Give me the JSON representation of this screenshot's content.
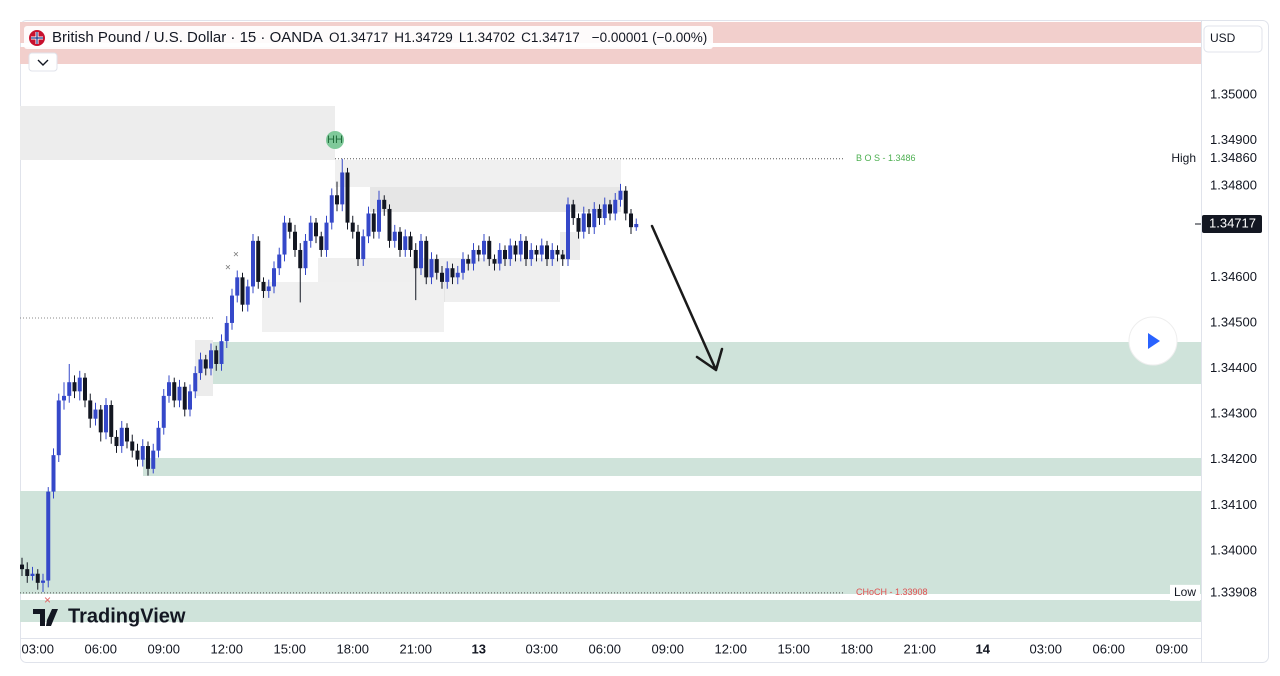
{
  "chart_data": {
    "type": "candlestick",
    "title": "British Pound / U.S. Dollar · 15 · OANDA",
    "stats": [
      {
        "label": "O",
        "value": 1.34717
      },
      {
        "label": "H",
        "value": 1.34729
      },
      {
        "label": "L",
        "value": 1.34702
      },
      {
        "label": "C",
        "value": 1.34717
      }
    ],
    "change": "−0.00001 (−0.00%)",
    "currency": "USD",
    "brand": "TradingView",
    "hh_label": "HH",
    "bos_label": "B O S - 1.3486",
    "choch_label": "CHoCH - 1.33908",
    "high_label": "High",
    "low_label": "Low",
    "last_price": 1.34717,
    "up_color": "#3548c9",
    "down_color": "#131722",
    "ylim": [
      1.33809,
      1.3516
    ],
    "yticks": [
      {
        "value": 1.35,
        "label": "1.35000"
      },
      {
        "value": 1.349,
        "label": "1.34900"
      },
      {
        "value": 1.3486,
        "label": "1.34860"
      },
      {
        "value": 1.348,
        "label": "1.34800"
      },
      {
        "value": 1.346,
        "label": "1.34600"
      },
      {
        "value": 1.345,
        "label": "1.34500"
      },
      {
        "value": 1.344,
        "label": "1.34400"
      },
      {
        "value": 1.343,
        "label": "1.34300"
      },
      {
        "value": 1.342,
        "label": "1.34200"
      },
      {
        "value": 1.341,
        "label": "1.34100"
      },
      {
        "value": 1.34,
        "label": "1.34000"
      },
      1.33908
    ],
    "grid": false,
    "x_labels": [
      "03:00",
      "06:00",
      "09:00",
      "12:00",
      "15:00",
      "18:00",
      "21:00",
      "13",
      "03:00",
      "06:00",
      "09:00",
      "12:00",
      "15:00",
      "18:00",
      "21:00",
      "14",
      "03:00",
      "06:00",
      "09:00"
    ],
    "candles": [
      [
        1.3397,
        1.33985,
        1.33945,
        1.3396
      ],
      [
        1.3396,
        1.33975,
        1.3393,
        1.33945
      ],
      [
        1.33945,
        1.33965,
        1.33935,
        1.3395
      ],
      [
        1.3395,
        1.3396,
        1.33915,
        1.3393
      ],
      [
        1.3393,
        1.3395,
        1.3391,
        1.33935
      ],
      [
        1.33935,
        1.3414,
        1.3392,
        1.3413
      ],
      [
        1.3413,
        1.34225,
        1.34115,
        1.3421
      ],
      [
        1.3421,
        1.34345,
        1.34195,
        1.3433
      ],
      [
        1.3433,
        1.3437,
        1.3431,
        1.3434
      ],
      [
        1.3434,
        1.3441,
        1.34325,
        1.3437
      ],
      [
        1.3437,
        1.34385,
        1.34335,
        1.3435
      ],
      [
        1.3435,
        1.34395,
        1.3433,
        1.3438
      ],
      [
        1.3438,
        1.3439,
        1.34315,
        1.3433
      ],
      [
        1.3433,
        1.34345,
        1.3427,
        1.3429
      ],
      [
        1.3429,
        1.34325,
        1.34275,
        1.3431
      ],
      [
        1.3431,
        1.3432,
        1.3424,
        1.3426
      ],
      [
        1.3426,
        1.34335,
        1.34245,
        1.3432
      ],
      [
        1.3432,
        1.3433,
        1.34235,
        1.3425
      ],
      [
        1.3425,
        1.34265,
        1.34215,
        1.3423
      ],
      [
        1.3423,
        1.34285,
        1.34215,
        1.3427
      ],
      [
        1.3427,
        1.3428,
        1.34225,
        1.3424
      ],
      [
        1.3424,
        1.34255,
        1.34205,
        1.3422
      ],
      [
        1.3422,
        1.34235,
        1.34185,
        1.342
      ],
      [
        1.342,
        1.34245,
        1.34185,
        1.3423
      ],
      [
        1.3423,
        1.3424,
        1.34165,
        1.3418
      ],
      [
        1.3418,
        1.34235,
        1.3417,
        1.3422
      ],
      [
        1.3422,
        1.34285,
        1.34205,
        1.3427
      ],
      [
        1.3427,
        1.34355,
        1.34255,
        1.3434
      ],
      [
        1.3434,
        1.34385,
        1.34325,
        1.3437
      ],
      [
        1.3437,
        1.3438,
        1.34315,
        1.3433
      ],
      [
        1.3433,
        1.34375,
        1.34315,
        1.3436
      ],
      [
        1.3436,
        1.3437,
        1.34295,
        1.3431
      ],
      [
        1.3431,
        1.34365,
        1.34295,
        1.3435
      ],
      [
        1.3435,
        1.34405,
        1.34335,
        1.3439
      ],
      [
        1.3439,
        1.34435,
        1.34375,
        1.3442
      ],
      [
        1.3442,
        1.3443,
        1.34385,
        1.344
      ],
      [
        1.344,
        1.34455,
        1.34385,
        1.3444
      ],
      [
        1.3444,
        1.3445,
        1.34395,
        1.3441
      ],
      [
        1.3441,
        1.34475,
        1.34395,
        1.3446
      ],
      [
        1.3446,
        1.34515,
        1.34445,
        1.345
      ],
      [
        1.345,
        1.34575,
        1.34485,
        1.3456
      ],
      [
        1.3456,
        1.34615,
        1.34545,
        1.346
      ],
      [
        1.346,
        1.3461,
        1.34525,
        1.3454
      ],
      [
        1.3454,
        1.34595,
        1.34525,
        1.3458
      ],
      [
        1.3458,
        1.34695,
        1.34565,
        1.3468
      ],
      [
        1.3468,
        1.3469,
        1.34575,
        1.3459
      ],
      [
        1.3459,
        1.346,
        1.34555,
        1.3457
      ],
      [
        1.3457,
        1.34595,
        1.34555,
        1.3458
      ],
      [
        1.3458,
        1.34635,
        1.34565,
        1.3462
      ],
      [
        1.3462,
        1.34665,
        1.34605,
        1.3465
      ],
      [
        1.3465,
        1.34735,
        1.34635,
        1.3472
      ],
      [
        1.3472,
        1.3473,
        1.34685,
        1.347
      ],
      [
        1.347,
        1.34715,
        1.34645,
        1.3466
      ],
      [
        1.3466,
        1.34675,
        1.34545,
        1.3462
      ],
      [
        1.3462,
        1.34695,
        1.34605,
        1.3468
      ],
      [
        1.3468,
        1.34735,
        1.34665,
        1.3472
      ],
      [
        1.3472,
        1.3473,
        1.34675,
        1.3469
      ],
      [
        1.3469,
        1.347,
        1.34645,
        1.3466
      ],
      [
        1.3466,
        1.34735,
        1.34645,
        1.3472
      ],
      [
        1.3472,
        1.34795,
        1.34705,
        1.3478
      ],
      [
        1.3478,
        1.3481,
        1.34745,
        1.3476
      ],
      [
        1.3476,
        1.3486,
        1.34745,
        1.3483
      ],
      [
        1.3483,
        1.3484,
        1.34705,
        1.3472
      ],
      [
        1.3472,
        1.34735,
        1.34685,
        1.347
      ],
      [
        1.347,
        1.34715,
        1.34625,
        1.3464
      ],
      [
        1.3464,
        1.34705,
        1.34625,
        1.3469
      ],
      [
        1.3469,
        1.34755,
        1.34675,
        1.3474
      ],
      [
        1.3474,
        1.3475,
        1.34685,
        1.347
      ],
      [
        1.347,
        1.3479,
        1.34685,
        1.3477
      ],
      [
        1.3477,
        1.3478,
        1.34735,
        1.3475
      ],
      [
        1.3475,
        1.3476,
        1.34665,
        1.3468
      ],
      [
        1.3468,
        1.34715,
        1.34665,
        1.347
      ],
      [
        1.347,
        1.3471,
        1.34645,
        1.3466
      ],
      [
        1.3466,
        1.34705,
        1.34645,
        1.3469
      ],
      [
        1.3469,
        1.347,
        1.34645,
        1.3466
      ],
      [
        1.3466,
        1.34675,
        1.3455,
        1.3462
      ],
      [
        1.3462,
        1.34695,
        1.34605,
        1.3468
      ],
      [
        1.3468,
        1.3469,
        1.34585,
        1.346
      ],
      [
        1.346,
        1.34655,
        1.34585,
        1.3464
      ],
      [
        1.3464,
        1.3465,
        1.34595,
        1.3461
      ],
      [
        1.3461,
        1.34625,
        1.34575,
        1.3459
      ],
      [
        1.3459,
        1.34635,
        1.34575,
        1.3462
      ],
      [
        1.3462,
        1.3463,
        1.34585,
        1.346
      ],
      [
        1.346,
        1.34625,
        1.34585,
        1.3461
      ],
      [
        1.3461,
        1.34655,
        1.34595,
        1.3464
      ],
      [
        1.3464,
        1.3465,
        1.34615,
        1.3463
      ],
      [
        1.3463,
        1.34675,
        1.34615,
        1.3466
      ],
      [
        1.3466,
        1.3467,
        1.34635,
        1.3465
      ],
      [
        1.3465,
        1.34695,
        1.34635,
        1.3468
      ],
      [
        1.3468,
        1.3469,
        1.34625,
        1.3464
      ],
      [
        1.3464,
        1.3465,
        1.34615,
        1.3463
      ],
      [
        1.3463,
        1.34675,
        1.34615,
        1.3466
      ],
      [
        1.3466,
        1.3467,
        1.34625,
        1.3464
      ],
      [
        1.3464,
        1.34685,
        1.34625,
        1.3467
      ],
      [
        1.3467,
        1.3468,
        1.34635,
        1.3465
      ],
      [
        1.3465,
        1.34695,
        1.34635,
        1.3468
      ],
      [
        1.3468,
        1.3469,
        1.34625,
        1.3464
      ],
      [
        1.3464,
        1.34675,
        1.34625,
        1.3466
      ],
      [
        1.3466,
        1.3467,
        1.34635,
        1.3465
      ],
      [
        1.3465,
        1.34685,
        1.34635,
        1.3467
      ],
      [
        1.3467,
        1.3468,
        1.34625,
        1.3464
      ],
      [
        1.3464,
        1.34675,
        1.34625,
        1.3466
      ],
      [
        1.3466,
        1.3467,
        1.34635,
        1.3465
      ],
      [
        1.3465,
        1.3466,
        1.34625,
        1.3464
      ],
      [
        1.3464,
        1.34775,
        1.34625,
        1.3476
      ],
      [
        1.3476,
        1.3477,
        1.34715,
        1.3473
      ],
      [
        1.3473,
        1.3474,
        1.34685,
        1.347
      ],
      [
        1.347,
        1.34755,
        1.34685,
        1.3474
      ],
      [
        1.3474,
        1.3475,
        1.34695,
        1.3471
      ],
      [
        1.3471,
        1.34765,
        1.34695,
        1.3475
      ],
      [
        1.3475,
        1.3476,
        1.34715,
        1.3473
      ],
      [
        1.3473,
        1.34775,
        1.34715,
        1.3476
      ],
      [
        1.3476,
        1.3477,
        1.34725,
        1.3474
      ],
      [
        1.3474,
        1.34785,
        1.34725,
        1.3477
      ],
      [
        1.3477,
        1.34805,
        1.34755,
        1.3479
      ],
      [
        1.3479,
        1.348,
        1.34725,
        1.3474
      ],
      [
        1.3474,
        1.3475,
        1.34695,
        1.3471
      ],
      [
        1.3471,
        1.34729,
        1.34702,
        1.34717
      ]
    ]
  }
}
